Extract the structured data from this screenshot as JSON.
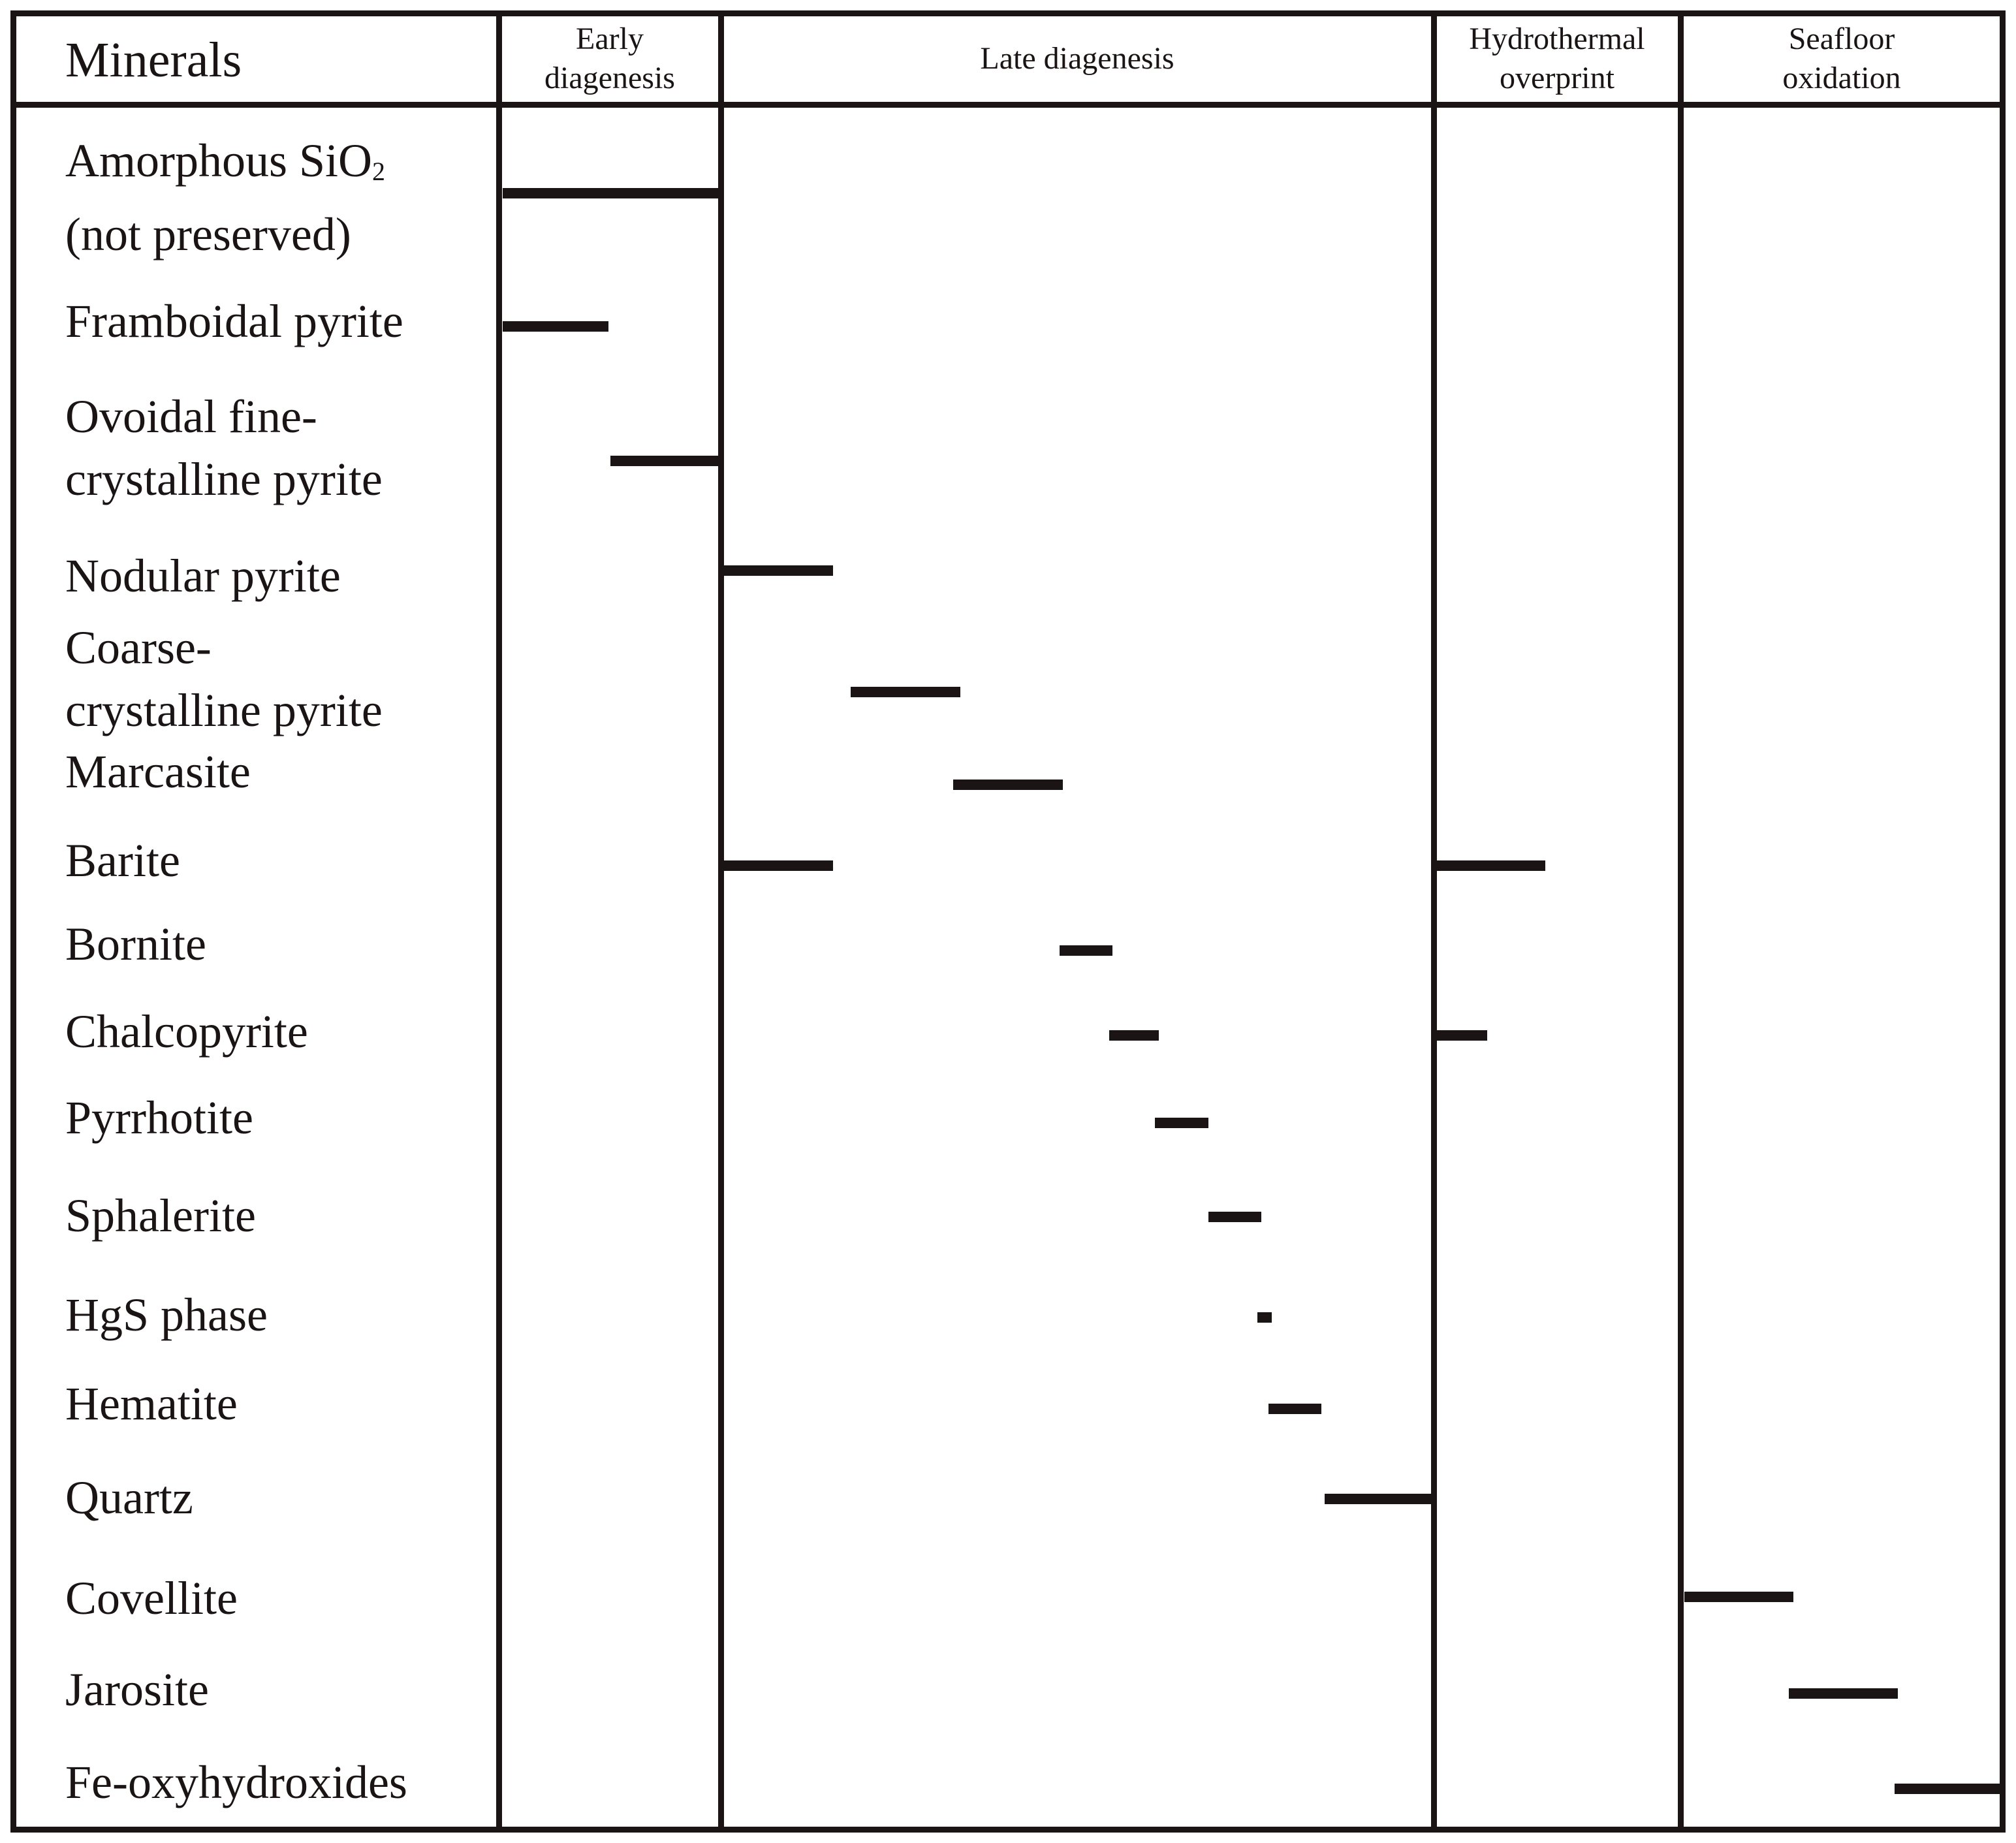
{
  "table_header": {
    "minerals": "Minerals",
    "stages": [
      {
        "id": "early",
        "lines": [
          "Early",
          "diagenesis"
        ]
      },
      {
        "id": "late",
        "lines": [
          "Late diagenesis"
        ]
      },
      {
        "id": "hydro",
        "lines": [
          "Hydrothermal",
          "overprint"
        ]
      },
      {
        "id": "seafloor",
        "lines": [
          "Seafloor",
          "oxidation"
        ]
      }
    ]
  },
  "minerals": [
    {
      "id": "amorphous-sio2",
      "lines": [
        "Amorphous SiO",
        "(not preserved)"
      ],
      "subscript": "2"
    },
    {
      "id": "framboidal-pyrite",
      "lines": [
        "Framboidal pyrite"
      ]
    },
    {
      "id": "ovoidal-pyrite",
      "lines": [
        "Ovoidal fine-",
        "crystalline pyrite"
      ]
    },
    {
      "id": "nodular-pyrite",
      "lines": [
        "Nodular pyrite"
      ]
    },
    {
      "id": "coarse-pyrite",
      "lines": [
        "Coarse-",
        "crystalline pyrite"
      ]
    },
    {
      "id": "marcasite",
      "lines": [
        "Marcasite"
      ]
    },
    {
      "id": "barite",
      "lines": [
        "Barite"
      ]
    },
    {
      "id": "bornite",
      "lines": [
        "Bornite"
      ]
    },
    {
      "id": "chalcopyrite",
      "lines": [
        "Chalcopyrite"
      ]
    },
    {
      "id": "pyrrhotite",
      "lines": [
        "Pyrrhotite"
      ]
    },
    {
      "id": "sphalerite",
      "lines": [
        "Sphalerite"
      ]
    },
    {
      "id": "hgs-phase",
      "lines": [
        "HgS phase"
      ]
    },
    {
      "id": "hematite",
      "lines": [
        "Hematite"
      ]
    },
    {
      "id": "quartz",
      "lines": [
        "Quartz"
      ]
    },
    {
      "id": "covellite",
      "lines": [
        "Covellite"
      ]
    },
    {
      "id": "jarosite",
      "lines": [
        "Jarosite"
      ]
    },
    {
      "id": "fe-oxyhydroxides",
      "lines": [
        "Fe-oxyhydroxides"
      ]
    }
  ],
  "paragenesis_ranges": [
    {
      "mineral": "amorphous-sio2",
      "ranges": [
        {
          "stage": "early",
          "start": 0.0,
          "end": 1.0
        }
      ]
    },
    {
      "mineral": "framboidal-pyrite",
      "ranges": [
        {
          "stage": "early",
          "start": 0.0,
          "end": 0.49
        }
      ]
    },
    {
      "mineral": "ovoidal-pyrite",
      "ranges": [
        {
          "stage": "early",
          "start": 0.5,
          "end": 1.0
        }
      ]
    },
    {
      "mineral": "nodular-pyrite",
      "ranges": [
        {
          "stage": "late",
          "start": 0.0,
          "end": 0.155
        }
      ]
    },
    {
      "mineral": "coarse-pyrite",
      "ranges": [
        {
          "stage": "late",
          "start": 0.18,
          "end": 0.335
        }
      ]
    },
    {
      "mineral": "marcasite",
      "ranges": [
        {
          "stage": "late",
          "start": 0.325,
          "end": 0.48
        }
      ]
    },
    {
      "mineral": "barite",
      "ranges": [
        {
          "stage": "late",
          "start": 0.0,
          "end": 0.155
        },
        {
          "stage": "hydro",
          "start": 0.0,
          "end": 0.45
        }
      ]
    },
    {
      "mineral": "bornite",
      "ranges": [
        {
          "stage": "late",
          "start": 0.475,
          "end": 0.55
        }
      ]
    },
    {
      "mineral": "chalcopyrite",
      "ranges": [
        {
          "stage": "late",
          "start": 0.545,
          "end": 0.615
        },
        {
          "stage": "hydro",
          "start": 0.0,
          "end": 0.21
        }
      ]
    },
    {
      "mineral": "pyrrhotite",
      "ranges": [
        {
          "stage": "late",
          "start": 0.61,
          "end": 0.685
        }
      ]
    },
    {
      "mineral": "sphalerite",
      "ranges": [
        {
          "stage": "late",
          "start": 0.685,
          "end": 0.76
        }
      ]
    },
    {
      "mineral": "hgs-phase",
      "ranges": [
        {
          "stage": "late",
          "start": 0.755,
          "end": 0.775
        }
      ]
    },
    {
      "mineral": "hematite",
      "ranges": [
        {
          "stage": "late",
          "start": 0.77,
          "end": 0.845
        }
      ]
    },
    {
      "mineral": "quartz",
      "ranges": [
        {
          "stage": "late",
          "start": 0.85,
          "end": 1.0
        }
      ]
    },
    {
      "mineral": "covellite",
      "ranges": [
        {
          "stage": "seafloor",
          "start": 0.0,
          "end": 0.345
        }
      ]
    },
    {
      "mineral": "jarosite",
      "ranges": [
        {
          "stage": "seafloor",
          "start": 0.33,
          "end": 0.675
        }
      ]
    },
    {
      "mineral": "fe-oxyhydroxides",
      "ranges": [
        {
          "stage": "seafloor",
          "start": 0.665,
          "end": 1.0
        }
      ]
    }
  ],
  "colors": {
    "ink": "#1a1414",
    "background": "#ffffff"
  }
}
